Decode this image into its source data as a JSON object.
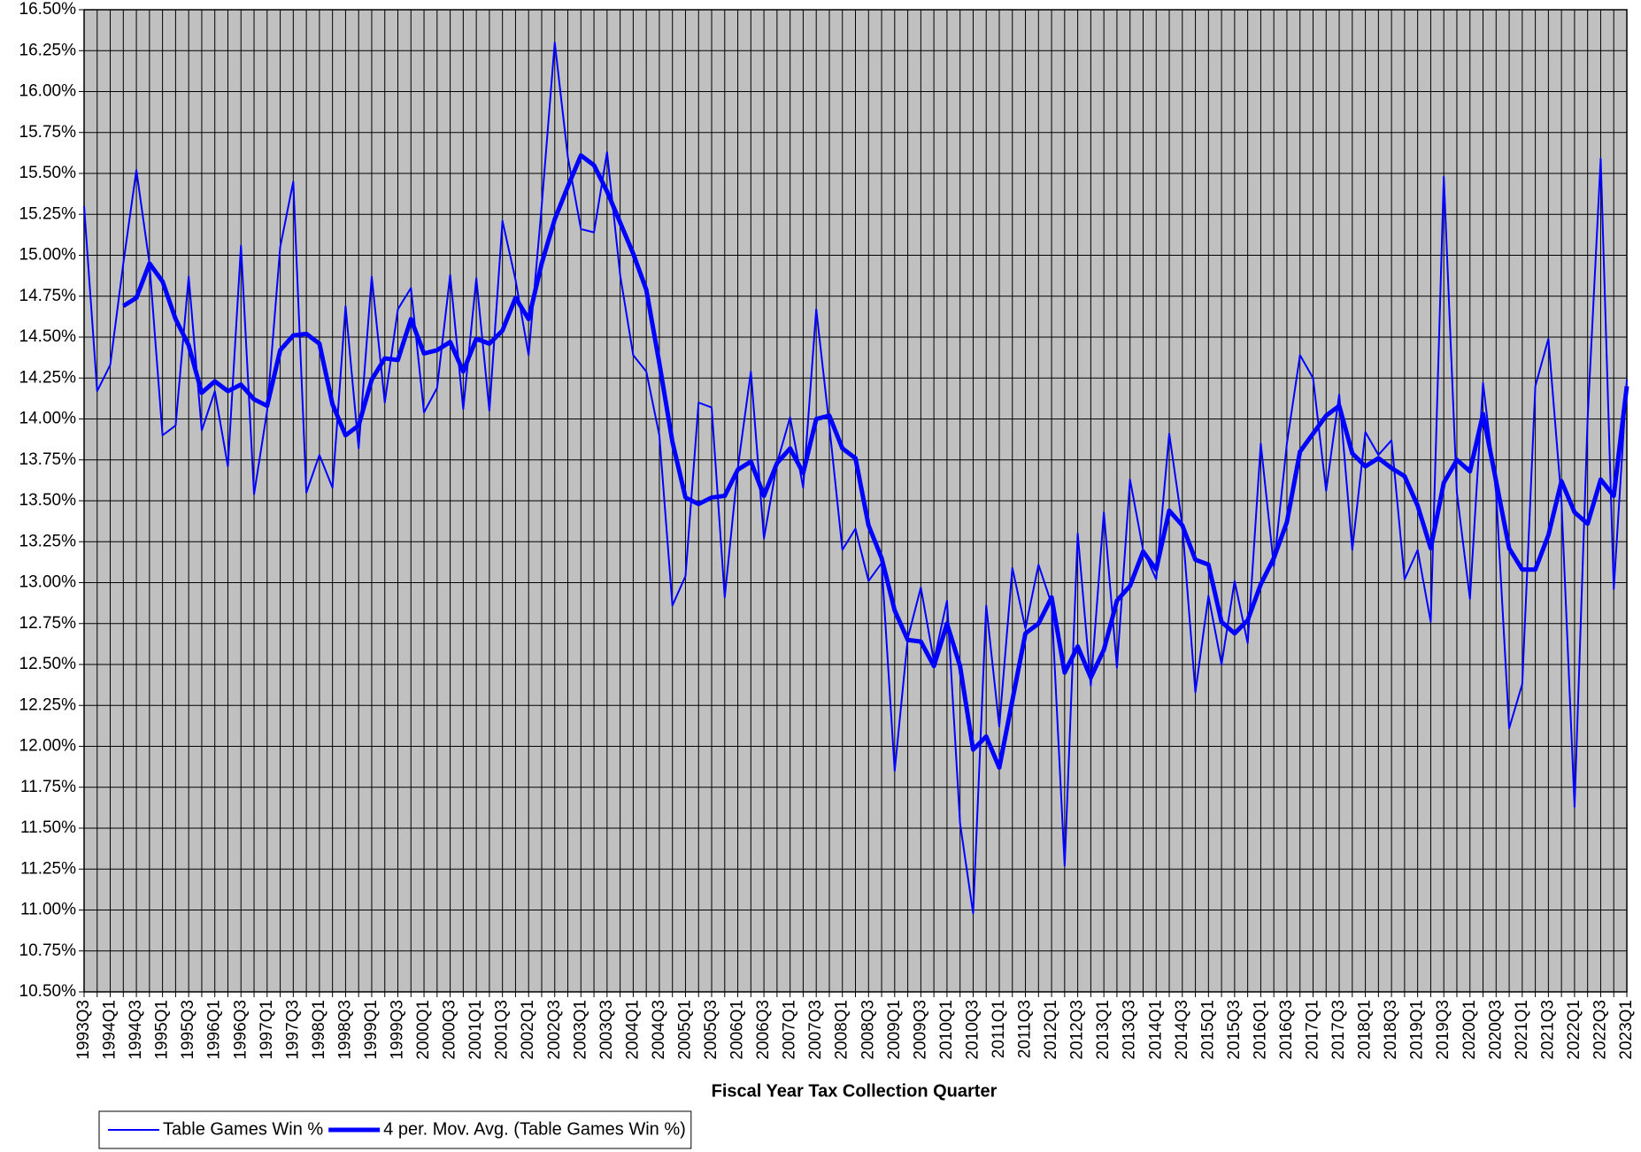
{
  "chart_data": {
    "type": "line",
    "x_label": "Fiscal Year Tax Collection Quarter",
    "categories": [
      "1993Q3",
      null,
      "1994Q1",
      null,
      "1994Q3",
      null,
      "1995Q1",
      null,
      "1995Q3",
      null,
      "1996Q1",
      null,
      "1996Q3",
      null,
      "1997Q1",
      null,
      "1997Q3",
      null,
      "1998Q1",
      null,
      "1998Q3",
      null,
      "1999Q1",
      null,
      "1999Q3",
      null,
      "2000Q1",
      null,
      "2000Q3",
      null,
      "2001Q1",
      null,
      "2001Q3",
      null,
      "2002Q1",
      null,
      "2002Q3",
      null,
      "2003Q1",
      null,
      "2003Q3",
      null,
      "2004Q1",
      null,
      "2004Q3",
      null,
      "2005Q1",
      null,
      "2005Q3",
      null,
      "2006Q1",
      null,
      "2006Q3",
      null,
      "2007Q1",
      null,
      "2007Q3",
      null,
      "2008Q1",
      null,
      "2008Q3",
      null,
      "2009Q1",
      null,
      "2009Q3",
      null,
      "2010Q1",
      null,
      "2010Q3",
      null,
      "2011Q1",
      null,
      "2011Q3",
      null,
      "2012Q1",
      null,
      "2012Q3",
      null,
      "2013Q1",
      null,
      "2013Q3",
      null,
      "2014Q1",
      null,
      "2014Q3",
      null,
      "2015Q1",
      null,
      "2015Q3",
      null,
      "2016Q1",
      null,
      "2016Q3",
      null,
      "2017Q1",
      null,
      "2017Q3",
      null,
      "2018Q1",
      null,
      "2018Q3",
      null,
      "2019Q1",
      null,
      "2019Q3",
      null,
      "2020Q1",
      null,
      "2020Q3",
      null,
      "2021Q1",
      null,
      "2021Q3",
      null,
      "2022Q1",
      null,
      "2022Q3",
      null,
      "2023Q1"
    ],
    "series": [
      {
        "name": "Table Games Win %",
        "color": "#0000ff",
        "values": [
          15.3,
          14.17,
          14.33,
          14.95,
          15.52,
          14.95,
          13.9,
          13.96,
          14.87,
          13.93,
          14.17,
          13.71,
          15.06,
          13.54,
          14.05,
          15.05,
          15.45,
          13.55,
          13.78,
          13.58,
          14.69,
          13.82,
          14.87,
          14.1,
          14.67,
          14.8,
          14.04,
          14.19,
          14.88,
          14.06,
          14.86,
          14.05,
          15.21,
          14.85,
          14.39,
          15.3,
          16.3,
          15.6,
          15.16,
          15.14,
          15.63,
          14.88,
          14.39,
          14.29,
          13.9,
          12.86,
          13.04,
          14.1,
          14.07,
          12.91,
          13.7,
          14.29,
          13.27,
          13.73,
          14.01,
          13.58,
          14.67,
          13.96,
          13.2,
          13.33,
          13.01,
          13.12,
          11.85,
          12.66,
          12.97,
          12.52,
          12.89,
          11.53,
          10.98,
          12.86,
          12.12,
          13.09,
          12.72,
          13.11,
          12.87,
          11.27,
          13.3,
          12.37,
          13.43,
          12.48,
          13.63,
          13.2,
          13.02,
          13.91,
          13.35,
          12.33,
          12.92,
          12.5,
          13.01,
          12.63,
          13.85,
          13.1,
          13.85,
          14.39,
          14.25,
          13.56,
          14.15,
          13.2,
          13.92,
          13.78,
          13.87,
          13.02,
          13.2,
          12.76,
          15.48,
          13.55,
          12.9,
          14.22,
          13.55,
          12.11,
          12.38,
          14.2,
          14.49,
          13.5,
          11.63,
          14.0,
          15.59,
          12.96,
          14.24
        ]
      },
      {
        "name": "4 per. Mov. Avg. (Table Games Win %)",
        "color": "#0000ff",
        "values": [
          null,
          null,
          null,
          14.69,
          14.74,
          14.95,
          14.84,
          14.61,
          14.45,
          14.16,
          14.23,
          14.17,
          14.21,
          14.12,
          14.08,
          14.42,
          14.51,
          14.52,
          14.46,
          14.09,
          13.9,
          13.96,
          14.24,
          14.37,
          14.36,
          14.61,
          14.4,
          14.42,
          14.47,
          14.29,
          14.49,
          14.46,
          14.54,
          14.74,
          14.61,
          14.95,
          15.22,
          15.42,
          15.61,
          15.55,
          15.39,
          15.2,
          15.01,
          14.79,
          14.34,
          13.86,
          13.52,
          13.48,
          13.52,
          13.53,
          13.69,
          13.74,
          13.53,
          13.73,
          13.82,
          13.67,
          14.0,
          14.02,
          13.82,
          13.76,
          13.35,
          13.15,
          12.83,
          12.65,
          12.64,
          12.49,
          12.75,
          12.49,
          11.98,
          12.06,
          11.87,
          12.28,
          12.69,
          12.75,
          12.91,
          12.45,
          12.61,
          12.42,
          12.59,
          12.89,
          12.98,
          13.19,
          13.08,
          13.44,
          13.35,
          13.14,
          13.11,
          12.76,
          12.69,
          12.77,
          12.99,
          13.15,
          13.37,
          13.8,
          13.91,
          14.02,
          14.08,
          13.79,
          13.71,
          13.76,
          13.7,
          13.65,
          13.47,
          13.21,
          13.61,
          13.75,
          13.68,
          14.03,
          13.62,
          13.21,
          13.08,
          13.08,
          13.29,
          13.62,
          13.43,
          13.36,
          13.63,
          13.53,
          14.2
        ]
      }
    ],
    "ylim": [
      10.5,
      16.5
    ],
    "yticks": [
      {
        "value": 10.5,
        "label": "10.50%"
      },
      {
        "value": 10.75,
        "label": "10.75%"
      },
      {
        "value": 11,
        "label": "11.00%"
      },
      {
        "value": 11.25,
        "label": "11.25%"
      },
      {
        "value": 11.5,
        "label": "11.50%"
      },
      {
        "value": 11.75,
        "label": "11.75%"
      },
      {
        "value": 12,
        "label": "12.00%"
      },
      {
        "value": 12.25,
        "label": "12.25%"
      },
      {
        "value": 12.5,
        "label": "12.50%"
      },
      {
        "value": 12.75,
        "label": "12.75%"
      },
      {
        "value": 13,
        "label": "13.00%"
      },
      {
        "value": 13.25,
        "label": "13.25%"
      },
      {
        "value": 13.5,
        "label": "13.50%"
      },
      {
        "value": 13.75,
        "label": "13.75%"
      },
      {
        "value": 14,
        "label": "14.00%"
      },
      {
        "value": 14.25,
        "label": "14.25%"
      },
      {
        "value": 14.5,
        "label": "14.50%"
      },
      {
        "value": 14.75,
        "label": "14.75%"
      },
      {
        "value": 15,
        "label": "15.00%"
      },
      {
        "value": 15.25,
        "label": "15.25%"
      },
      {
        "value": 15.5,
        "label": "15.50%"
      },
      {
        "value": 15.75,
        "label": "15.75%"
      },
      {
        "value": 16,
        "label": "16.00%"
      },
      {
        "value": 16.25,
        "label": "16.25%"
      },
      {
        "value": 16.5,
        "label": "16.50%"
      }
    ],
    "grid": true,
    "legend": "bottom-left"
  }
}
